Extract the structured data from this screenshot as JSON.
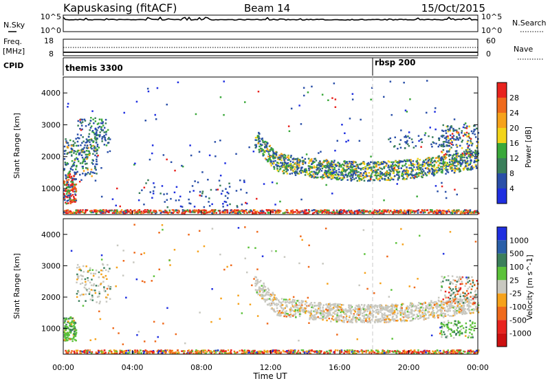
{
  "header": {
    "station": "Kapuskasing (fitACF)",
    "beam": "Beam 14",
    "date": "15/Oct/2015"
  },
  "noise_panel": {
    "left_label": "N.Sky",
    "right_label": "N.Search",
    "left_ticks": [
      "10^5",
      "10^0"
    ],
    "right_ticks": [
      "10^5",
      "10^0"
    ]
  },
  "freq_panel": {
    "left_label_1": "Freq.",
    "left_label_2": "[MHz]",
    "right_label": "Nave",
    "left_ticks": [
      "18",
      "8"
    ],
    "right_ticks": [
      "60",
      "0"
    ]
  },
  "cpid_panel": {
    "label": "CPID",
    "segments": [
      {
        "name": "themis 3300",
        "start": "00:00"
      },
      {
        "name": "rbsp 200",
        "start": "18:00"
      }
    ]
  },
  "chart_data": [
    {
      "type": "heatmap",
      "quantity": "Power",
      "ylabel": "Slant Range [km]",
      "colorbar_label": "Power [dB]",
      "colorbar_ticks": [
        "28",
        "24",
        "20",
        "16",
        "12",
        "8",
        "4"
      ],
      "colorbar_colors": [
        "#e8231e",
        "#ef6a1c",
        "#f6a21b",
        "#f2d41a",
        "#3aa83a",
        "#3b7f5b",
        "#2a4fa8",
        "#1f2fe0"
      ],
      "yticks": [
        "1000",
        "2000",
        "3000",
        "4000"
      ],
      "ylim": [
        180,
        4500
      ],
      "xlim": [
        "00:00",
        "24:00"
      ]
    },
    {
      "type": "heatmap",
      "quantity": "Velocity",
      "ylabel": "Slant Range [km]",
      "colorbar_label": "Velocity [m s^-1]",
      "colorbar_ticks": [
        "1000",
        "500",
        "100",
        "25",
        "-25",
        "-100",
        "-500",
        "-1000"
      ],
      "colorbar_colors": [
        "#1f2fe0",
        "#2a5fa8",
        "#3b7f5b",
        "#5cc23a",
        "#c8c8c0",
        "#f6a21b",
        "#ef6a1c",
        "#e8231e",
        "#cc1010"
      ],
      "yticks": [
        "1000",
        "2000",
        "3000",
        "4000"
      ],
      "ylim": [
        180,
        4500
      ],
      "xlim": [
        "00:00",
        "24:00"
      ]
    }
  ],
  "xaxis": {
    "label": "Time UT",
    "ticks": [
      "00:00",
      "04:00",
      "08:00",
      "12:00",
      "16:00",
      "20:00",
      "00:00"
    ]
  }
}
